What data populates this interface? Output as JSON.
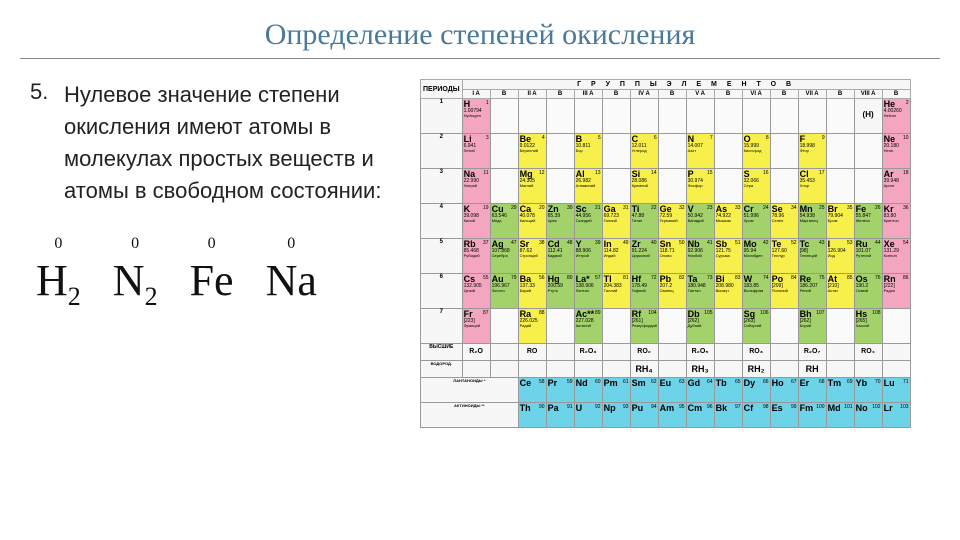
{
  "title": {
    "text": "Определение степеней окисления",
    "color": "#4a7a9a",
    "fontsize": 30
  },
  "bullet": {
    "number": "5.",
    "text": "Нулевое значение степени окисления имеют атомы в молекулах простых веществ и атомы в свободном состоянии:"
  },
  "formulas": [
    {
      "symbol": "H",
      "sub": "2",
      "ox": "0"
    },
    {
      "symbol": "N",
      "sub": "2",
      "ox": "0"
    },
    {
      "symbol": "Fe",
      "sub": "",
      "ox": "0"
    },
    {
      "symbol": "Na",
      "sub": "",
      "ox": "0"
    }
  ],
  "ptable": {
    "periods_label": "ПЕРИОДЫ",
    "groups_label": "Г Р У П П Ы   Э Л Е М Е Н Т О В",
    "group_heads": [
      "I",
      "A",
      "I",
      "B",
      "A",
      "II",
      "B",
      "A",
      "III",
      "B",
      "A",
      "IV",
      "B",
      "A",
      "V",
      "B",
      "A",
      "VI",
      "B",
      "A",
      "VII",
      "B",
      "A"
    ],
    "subgroups": [
      "A",
      "B",
      "A",
      "B",
      "A",
      "B",
      "A",
      "B",
      "A",
      "B",
      "A",
      "B",
      "A",
      "B",
      "A",
      "B"
    ],
    "h_note": "(H)",
    "colors": {
      "alkali": "#f4a6c0",
      "alkaline": "#f4a6c0",
      "nonmetal": "#f7ef4a",
      "metalloid": "#f7ef4a",
      "transition": "#a3d16a",
      "noble": "#f4a6c0",
      "lanth": "#6cd3e8",
      "header": "#f7f7f7"
    },
    "periods": [
      [
        {
          "n": "1",
          "s": "H",
          "m": "1.00794",
          "name": "Hydrogen",
          "c": "alkali"
        },
        null,
        null,
        null,
        null,
        null,
        null,
        null,
        null,
        null,
        null,
        null,
        null,
        null,
        {
          "s": "(H)",
          "c": "header",
          "text": true
        },
        {
          "n": "2",
          "s": "He",
          "m": "4.00260",
          "name": "Helium",
          "c": "alkali"
        }
      ],
      [
        {
          "n": "3",
          "s": "Li",
          "m": "6.941",
          "name": "Литий",
          "c": "alkali"
        },
        null,
        {
          "n": "4",
          "s": "Be",
          "m": "9.0122",
          "name": "Бериллий",
          "c": "nonmetal"
        },
        null,
        {
          "n": "5",
          "s": "B",
          "m": "10.811",
          "name": "Бор",
          "c": "nonmetal"
        },
        null,
        {
          "n": "6",
          "s": "C",
          "m": "12.011",
          "name": "Углерод",
          "c": "nonmetal"
        },
        null,
        {
          "n": "7",
          "s": "N",
          "m": "14.007",
          "name": "Азот",
          "c": "nonmetal"
        },
        null,
        {
          "n": "8",
          "s": "O",
          "m": "15.999",
          "name": "Кислород",
          "c": "nonmetal"
        },
        null,
        {
          "n": "9",
          "s": "F",
          "m": "18.998",
          "name": "Фтор",
          "c": "nonmetal"
        },
        null,
        null,
        {
          "n": "10",
          "s": "Ne",
          "m": "20.180",
          "name": "Неон",
          "c": "alkali"
        }
      ],
      [
        {
          "n": "11",
          "s": "Na",
          "m": "22.990",
          "name": "Натрий",
          "c": "alkali"
        },
        null,
        {
          "n": "12",
          "s": "Mg",
          "m": "24.305",
          "name": "Магний",
          "c": "nonmetal"
        },
        null,
        {
          "n": "13",
          "s": "Al",
          "m": "26.982",
          "name": "Алюминий",
          "c": "nonmetal"
        },
        null,
        {
          "n": "14",
          "s": "Si",
          "m": "28.086",
          "name": "Кремний",
          "c": "nonmetal"
        },
        null,
        {
          "n": "15",
          "s": "P",
          "m": "30.974",
          "name": "Фосфор",
          "c": "nonmetal"
        },
        null,
        {
          "n": "16",
          "s": "S",
          "m": "32.066",
          "name": "Сера",
          "c": "nonmetal"
        },
        null,
        {
          "n": "17",
          "s": "Cl",
          "m": "35.453",
          "name": "Хлор",
          "c": "nonmetal"
        },
        null,
        null,
        {
          "n": "18",
          "s": "Ar",
          "m": "39.948",
          "name": "Аргон",
          "c": "alkali"
        }
      ],
      [
        {
          "n": "19",
          "s": "K",
          "m": "39.098",
          "name": "Калий",
          "c": "alkali"
        },
        {
          "n": "29",
          "s": "Cu",
          "m": "63.546",
          "name": "Медь",
          "c": "transition"
        },
        {
          "n": "20",
          "s": "Ca",
          "m": "40.078",
          "name": "Кальций",
          "c": "nonmetal"
        },
        {
          "n": "30",
          "s": "Zn",
          "m": "65.39",
          "name": "Цинк",
          "c": "transition"
        },
        {
          "n": "21",
          "s": "Sc",
          "m": "44.956",
          "name": "Скандий",
          "c": "transition"
        },
        {
          "n": "31",
          "s": "Ga",
          "m": "69.723",
          "name": "Галлий",
          "c": "nonmetal"
        },
        {
          "n": "22",
          "s": "Ti",
          "m": "47.88",
          "name": "Титан",
          "c": "transition"
        },
        {
          "n": "32",
          "s": "Ge",
          "m": "72.59",
          "name": "Германий",
          "c": "nonmetal"
        },
        {
          "n": "23",
          "s": "V",
          "m": "50.942",
          "name": "Ванадий",
          "c": "transition"
        },
        {
          "n": "33",
          "s": "As",
          "m": "74.922",
          "name": "Мышьяк",
          "c": "nonmetal"
        },
        {
          "n": "24",
          "s": "Cr",
          "m": "51.996",
          "name": "Хром",
          "c": "transition"
        },
        {
          "n": "34",
          "s": "Se",
          "m": "78.96",
          "name": "Селен",
          "c": "nonmetal"
        },
        {
          "n": "25",
          "s": "Mn",
          "m": "54.938",
          "name": "Марганец",
          "c": "transition"
        },
        {
          "n": "35",
          "s": "Br",
          "m": "79.904",
          "name": "Бром",
          "c": "nonmetal"
        },
        {
          "n": "26",
          "s": "Fe",
          "m": "55.847",
          "name": "Железо",
          "c": "transition"
        },
        {
          "n": "36",
          "s": "Kr",
          "m": "83.80",
          "name": "Криптон",
          "c": "alkali"
        }
      ],
      [
        {
          "n": "37",
          "s": "Rb",
          "m": "85.468",
          "name": "Рубидий",
          "c": "alkali"
        },
        {
          "n": "47",
          "s": "Ag",
          "m": "107.868",
          "name": "Серебро",
          "c": "transition"
        },
        {
          "n": "38",
          "s": "Sr",
          "m": "87.62",
          "name": "Стронций",
          "c": "nonmetal"
        },
        {
          "n": "48",
          "s": "Cd",
          "m": "112.41",
          "name": "Кадмий",
          "c": "transition"
        },
        {
          "n": "39",
          "s": "Y",
          "m": "88.906",
          "name": "Иттрий",
          "c": "transition"
        },
        {
          "n": "49",
          "s": "In",
          "m": "114.82",
          "name": "Индий",
          "c": "nonmetal"
        },
        {
          "n": "40",
          "s": "Zr",
          "m": "91.224",
          "name": "Цирконий",
          "c": "transition"
        },
        {
          "n": "50",
          "s": "Sn",
          "m": "118.71",
          "name": "Олово",
          "c": "nonmetal"
        },
        {
          "n": "41",
          "s": "Nb",
          "m": "92.906",
          "name": "Ниобий",
          "c": "transition"
        },
        {
          "n": "51",
          "s": "Sb",
          "m": "121.75",
          "name": "Сурьма",
          "c": "nonmetal"
        },
        {
          "n": "42",
          "s": "Mo",
          "m": "95.94",
          "name": "Молибден",
          "c": "transition"
        },
        {
          "n": "52",
          "s": "Te",
          "m": "127.60",
          "name": "Теллур",
          "c": "nonmetal"
        },
        {
          "n": "43",
          "s": "Tc",
          "m": "[98]",
          "name": "Технеций",
          "c": "transition"
        },
        {
          "n": "53",
          "s": "I",
          "m": "126.904",
          "name": "Иод",
          "c": "nonmetal"
        },
        {
          "n": "44",
          "s": "Ru",
          "m": "101.07",
          "name": "Рутений",
          "c": "transition"
        },
        {
          "n": "54",
          "s": "Xe",
          "m": "131.29",
          "name": "Ксенон",
          "c": "alkali"
        }
      ],
      [
        {
          "n": "55",
          "s": "Cs",
          "m": "132.905",
          "name": "Цезий",
          "c": "alkali"
        },
        {
          "n": "79",
          "s": "Au",
          "m": "196.967",
          "name": "Золото",
          "c": "transition"
        },
        {
          "n": "56",
          "s": "Ba",
          "m": "137.33",
          "name": "Барий",
          "c": "nonmetal"
        },
        {
          "n": "80",
          "s": "Hg",
          "m": "200.59",
          "name": "Ртуть",
          "c": "transition"
        },
        {
          "n": "57",
          "s": "La*",
          "m": "138.906",
          "name": "Лантан",
          "c": "transition"
        },
        {
          "n": "81",
          "s": "Tl",
          "m": "204.383",
          "name": "Таллий",
          "c": "nonmetal"
        },
        {
          "n": "72",
          "s": "Hf",
          "m": "178.49",
          "name": "Гафний",
          "c": "transition"
        },
        {
          "n": "82",
          "s": "Pb",
          "m": "207.2",
          "name": "Свинец",
          "c": "nonmetal"
        },
        {
          "n": "73",
          "s": "Ta",
          "m": "180.948",
          "name": "Тантал",
          "c": "transition"
        },
        {
          "n": "83",
          "s": "Bi",
          "m": "208.980",
          "name": "Висмут",
          "c": "nonmetal"
        },
        {
          "n": "74",
          "s": "W",
          "m": "183.85",
          "name": "Вольфрам",
          "c": "transition"
        },
        {
          "n": "84",
          "s": "Po",
          "m": "[209]",
          "name": "Полоний",
          "c": "nonmetal"
        },
        {
          "n": "75",
          "s": "Re",
          "m": "186.207",
          "name": "Рений",
          "c": "transition"
        },
        {
          "n": "85",
          "s": "At",
          "m": "[210]",
          "name": "Астат",
          "c": "nonmetal"
        },
        {
          "n": "76",
          "s": "Os",
          "m": "190.2",
          "name": "Осмий",
          "c": "transition"
        },
        {
          "n": "86",
          "s": "Rn",
          "m": "[222]",
          "name": "Радон",
          "c": "alkali"
        }
      ],
      [
        {
          "n": "87",
          "s": "Fr",
          "m": "[223]",
          "name": "Франций",
          "c": "alkali"
        },
        null,
        {
          "n": "88",
          "s": "Ra",
          "m": "226.025",
          "name": "Радий",
          "c": "nonmetal"
        },
        null,
        {
          "n": "89",
          "s": "Ac**",
          "m": "227.028",
          "name": "Актиний",
          "c": "transition"
        },
        null,
        {
          "n": "104",
          "s": "Rf",
          "m": "[261]",
          "name": "Резерфордий",
          "c": "transition"
        },
        null,
        {
          "n": "105",
          "s": "Db",
          "m": "[262]",
          "name": "Дубний",
          "c": "transition"
        },
        null,
        {
          "n": "106",
          "s": "Sg",
          "m": "[263]",
          "name": "Сиборгий",
          "c": "transition"
        },
        null,
        {
          "n": "107",
          "s": "Bh",
          "m": "[262]",
          "name": "Борий",
          "c": "transition"
        },
        null,
        {
          "n": "108",
          "s": "Hs",
          "m": "[265]",
          "name": "Хассий",
          "c": "transition"
        },
        null
      ]
    ],
    "oxides_label": "ВЫСШИЕ ОКСИДЫ",
    "oxides": [
      "R₂O",
      "",
      "RO",
      "",
      "R₂O₃",
      "",
      "RO₂",
      "",
      "R₂O₅",
      "",
      "RO₃",
      "",
      "R₂O₇",
      "",
      "RO₄",
      ""
    ],
    "hydrides_label": "ВОДОРОДНЫЕ СОЕДИНЕНИЯ",
    "hydrides": [
      "",
      "",
      "",
      "",
      "",
      "",
      "RH₄",
      "",
      "RH₃",
      "",
      "RH₂",
      "",
      "RH",
      "",
      "",
      ""
    ],
    "lanth_label": "ЛАНТАНОИДЫ *",
    "lanthanides": [
      {
        "n": "58",
        "s": "Ce"
      },
      {
        "n": "59",
        "s": "Pr"
      },
      {
        "n": "60",
        "s": "Nd"
      },
      {
        "n": "61",
        "s": "Pm"
      },
      {
        "n": "62",
        "s": "Sm"
      },
      {
        "n": "63",
        "s": "Eu"
      },
      {
        "n": "64",
        "s": "Gd"
      },
      {
        "n": "65",
        "s": "Tb"
      },
      {
        "n": "66",
        "s": "Dy"
      },
      {
        "n": "67",
        "s": "Ho"
      },
      {
        "n": "68",
        "s": "Er"
      },
      {
        "n": "69",
        "s": "Tm"
      },
      {
        "n": "70",
        "s": "Yb"
      },
      {
        "n": "71",
        "s": "Lu"
      }
    ],
    "act_label": "АКТИНОИДЫ **",
    "actinides": [
      {
        "n": "90",
        "s": "Th"
      },
      {
        "n": "91",
        "s": "Pa"
      },
      {
        "n": "92",
        "s": "U"
      },
      {
        "n": "93",
        "s": "Np"
      },
      {
        "n": "94",
        "s": "Pu"
      },
      {
        "n": "95",
        "s": "Am"
      },
      {
        "n": "96",
        "s": "Cm"
      },
      {
        "n": "97",
        "s": "Bk"
      },
      {
        "n": "98",
        "s": "Cf"
      },
      {
        "n": "99",
        "s": "Es"
      },
      {
        "n": "100",
        "s": "Fm"
      },
      {
        "n": "101",
        "s": "Md"
      },
      {
        "n": "102",
        "s": "No"
      },
      {
        "n": "103",
        "s": "Lr"
      }
    ]
  }
}
